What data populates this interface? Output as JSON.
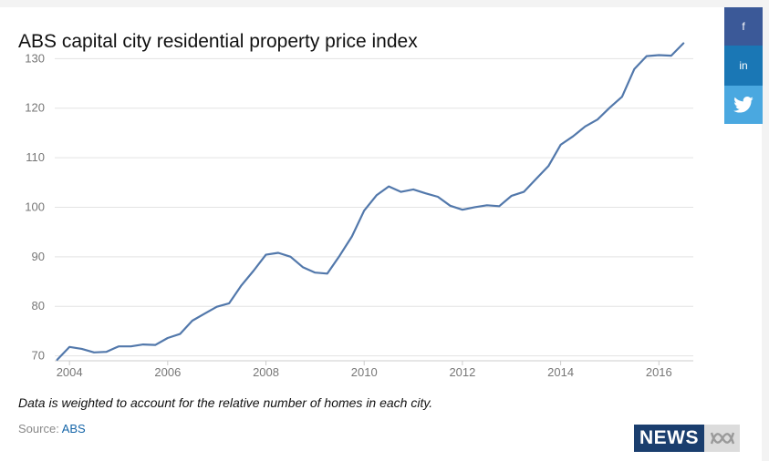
{
  "title": "ABS capital city residential property price index",
  "note": "Data is weighted to account for the relative number of homes in each city.",
  "source": {
    "label": "Source:",
    "link": "ABS"
  },
  "share": {
    "facebook": "f",
    "linkedin": "in"
  },
  "logo": {
    "text": "NEWS"
  },
  "colors": {
    "line": "#5278ab",
    "grid": "#e3e3e3",
    "axis": "#cccccc",
    "tick_label": "#777777",
    "facebook": "#3b5998",
    "linkedin": "#1a77b5",
    "twitter": "#4aa8e0",
    "news_blue": "#1a3e6e"
  },
  "chart_data": {
    "type": "line",
    "title": "ABS capital city residential property price index",
    "xlabel": "",
    "ylabel": "",
    "xlim": [
      2003.7,
      2016.7
    ],
    "ylim": [
      69,
      133
    ],
    "x_ticks": [
      2004,
      2006,
      2008,
      2010,
      2012,
      2014,
      2016
    ],
    "x_tick_labels": [
      "2004",
      "2006",
      "2008",
      "2010",
      "2012",
      "2014",
      "2016"
    ],
    "y_ticks": [
      70,
      80,
      90,
      100,
      110,
      120,
      130
    ],
    "y_tick_labels": [
      "70",
      "80",
      "90",
      "100",
      "110",
      "120",
      "130"
    ],
    "grid": true,
    "series": [
      {
        "x": [
          2003.75,
          2004.0,
          2004.25,
          2004.5,
          2004.75,
          2005.0,
          2005.25,
          2005.5,
          2005.75,
          2006.0,
          2006.25,
          2006.5,
          2006.75,
          2007.0,
          2007.25,
          2007.5,
          2007.75,
          2008.0,
          2008.25,
          2008.5,
          2008.75,
          2009.0,
          2009.25,
          2009.5,
          2009.75,
          2010.0,
          2010.25,
          2010.5,
          2010.75,
          2011.0,
          2011.25,
          2011.5,
          2011.75,
          2012.0,
          2012.25,
          2012.5,
          2012.75,
          2013.0,
          2013.25,
          2013.5,
          2013.75,
          2014.0,
          2014.25,
          2014.5,
          2014.75,
          2015.0,
          2015.25,
          2015.5,
          2015.75,
          2016.0,
          2016.25,
          2016.5
        ],
        "values": [
          69.2,
          71.8,
          71.4,
          70.7,
          70.8,
          71.9,
          71.9,
          72.3,
          72.2,
          73.6,
          74.4,
          77.1,
          78.5,
          79.9,
          80.6,
          84.2,
          87.2,
          90.4,
          90.8,
          90.0,
          87.9,
          86.8,
          86.6,
          90.2,
          94.1,
          99.3,
          102.4,
          104.2,
          103.1,
          103.6,
          102.8,
          102.1,
          100.3,
          99.5,
          100.0,
          100.4,
          100.2,
          102.3,
          103.1,
          105.7,
          108.3,
          112.6,
          114.3,
          116.3,
          117.7,
          120.1,
          122.3,
          127.9,
          130.5,
          130.7,
          130.6,
          133.1
        ]
      }
    ]
  }
}
